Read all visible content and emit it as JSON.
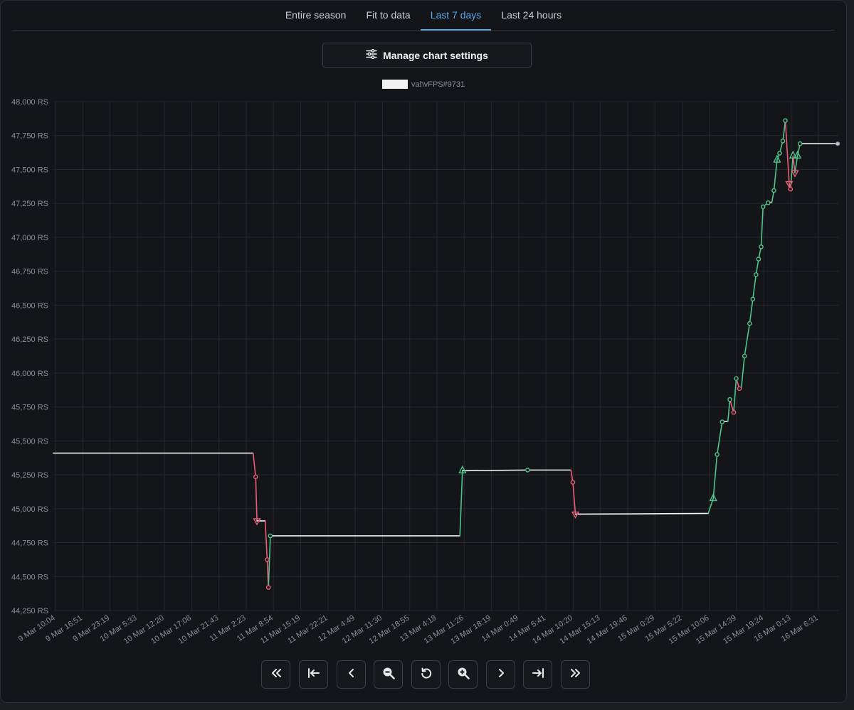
{
  "tabs": [
    {
      "label": "Entire season",
      "active": false
    },
    {
      "label": "Fit to data",
      "active": false
    },
    {
      "label": "Last 7 days",
      "active": true
    },
    {
      "label": "Last 24 hours",
      "active": false
    }
  ],
  "manage_button": {
    "label": "Manage chart settings",
    "icon": "sliders-icon"
  },
  "nav_buttons": [
    {
      "name": "jump-far-back-button",
      "icon": "double-chevron-left-icon"
    },
    {
      "name": "jump-to-start-button",
      "icon": "arrow-to-start-icon"
    },
    {
      "name": "step-back-button",
      "icon": "chevron-left-icon"
    },
    {
      "name": "zoom-out-button",
      "icon": "zoom-out-icon"
    },
    {
      "name": "reset-view-button",
      "icon": "reset-icon"
    },
    {
      "name": "zoom-in-button",
      "icon": "zoom-in-icon"
    },
    {
      "name": "step-forward-button",
      "icon": "chevron-right-icon"
    },
    {
      "name": "jump-to-end-button",
      "icon": "arrow-to-end-icon"
    },
    {
      "name": "jump-far-forward-button",
      "icon": "double-chevron-right-icon"
    }
  ],
  "colors": {
    "accent": "#5aa9e6",
    "rise": "#4fc48a",
    "fall": "#ee5d78",
    "flat": "#f2f2f2",
    "grid": "#25282e",
    "tick_text": "#8b8f96"
  },
  "chart_data": {
    "type": "line",
    "legend": {
      "series": "vahvFPS#9731",
      "color": "#f2f2f2",
      "placement": "top-center"
    },
    "y_unit_suffix": " RS",
    "ylim": [
      44250,
      48000
    ],
    "yticks": [
      "44,250 RS",
      "44,500 RS",
      "44,750 RS",
      "45,000 RS",
      "45,250 RS",
      "45,500 RS",
      "45,750 RS",
      "46,000 RS",
      "46,250 RS",
      "46,500 RS",
      "46,750 RS",
      "47,000 RS",
      "47,250 RS",
      "47,500 RS",
      "47,750 RS",
      "48,000 RS"
    ],
    "ytick_values": [
      44250,
      44500,
      44750,
      45000,
      45250,
      45500,
      45750,
      46000,
      46250,
      46500,
      46750,
      47000,
      47250,
      47500,
      47750,
      48000
    ],
    "xlim_hours": [
      0,
      164
    ],
    "xticks": [
      "9 Mar 10:04",
      "9 Mar 16:51",
      "9 Mar 23:19",
      "10 Mar 5:33",
      "10 Mar 12:20",
      "10 Mar 17:08",
      "10 Mar 21:43",
      "11 Mar 2:23",
      "11 Mar 8:54",
      "11 Mar 15:19",
      "11 Mar 22:21",
      "12 Mar 4:49",
      "12 Mar 11:30",
      "12 Mar 18:55",
      "13 Mar 4:18",
      "13 Mar 11:26",
      "13 Mar 18:19",
      "14 Mar 0:49",
      "14 Mar 5:41",
      "14 Mar 10:20",
      "14 Mar 15:13",
      "14 Mar 19:46",
      "15 Mar 0:29",
      "15 Mar 5:22",
      "15 Mar 10:06",
      "15 Mar 14:39",
      "15 Mar 19:24",
      "16 Mar 0:13",
      "16 Mar 6:31"
    ],
    "grid": true,
    "series": [
      {
        "name": "vahvFPS#9731",
        "points": [
          {
            "t": 0,
            "v": 45410,
            "m": "none"
          },
          {
            "t": 62.6,
            "v": 45410,
            "m": "none"
          },
          {
            "t": 63.4,
            "v": 45235,
            "m": "dot"
          },
          {
            "t": 63.8,
            "v": 44910,
            "m": "down"
          },
          {
            "t": 66.4,
            "v": 44910,
            "m": "none"
          },
          {
            "t": 67.0,
            "v": 44625,
            "m": "dot"
          },
          {
            "t": 67.4,
            "v": 44420,
            "m": "dot"
          },
          {
            "t": 68.0,
            "v": 44800,
            "m": "dot"
          },
          {
            "t": 127.4,
            "v": 44800,
            "m": "none"
          },
          {
            "t": 128.2,
            "v": 45280,
            "m": "up"
          },
          {
            "t": 148.6,
            "v": 45285,
            "m": "dot"
          },
          {
            "t": 162.2,
            "v": 45285,
            "m": "none"
          },
          {
            "t": 162.8,
            "v": 45195,
            "m": "dot"
          },
          {
            "t": 163.6,
            "v": 44960,
            "m": "down"
          },
          {
            "t": 205.2,
            "v": 44965,
            "m": "none"
          },
          {
            "t": 206.8,
            "v": 45075,
            "m": "up"
          },
          {
            "t": 208.0,
            "v": 45400,
            "m": "dot"
          },
          {
            "t": 209.6,
            "v": 45640,
            "m": "dot"
          },
          {
            "t": 211.4,
            "v": 45645,
            "m": "none"
          },
          {
            "t": 212.0,
            "v": 45805,
            "m": "dot"
          },
          {
            "t": 213.2,
            "v": 45710,
            "m": "dot"
          },
          {
            "t": 214.0,
            "v": 45960,
            "m": "dot"
          },
          {
            "t": 215.0,
            "v": 45885,
            "m": "dot"
          },
          {
            "t": 215.6,
            "v": 45890,
            "m": "none"
          },
          {
            "t": 216.6,
            "v": 46125,
            "m": "dot"
          },
          {
            "t": 218.2,
            "v": 46365,
            "m": "dot"
          },
          {
            "t": 219.2,
            "v": 46545,
            "m": "dot"
          },
          {
            "t": 220.2,
            "v": 46725,
            "m": "dot"
          },
          {
            "t": 221.0,
            "v": 46840,
            "m": "dot"
          },
          {
            "t": 221.8,
            "v": 46930,
            "m": "dot"
          },
          {
            "t": 222.4,
            "v": 47225,
            "m": "dot"
          },
          {
            "t": 224.0,
            "v": 47255,
            "m": "dot"
          },
          {
            "t": 225.2,
            "v": 47260,
            "m": "none"
          },
          {
            "t": 225.8,
            "v": 47345,
            "m": "dot"
          },
          {
            "t": 226.8,
            "v": 47570,
            "m": "up"
          },
          {
            "t": 227.6,
            "v": 47620,
            "m": "dot"
          },
          {
            "t": 228.6,
            "v": 47710,
            "m": "dot"
          },
          {
            "t": 229.4,
            "v": 47860,
            "m": "dot"
          },
          {
            "t": 230.6,
            "v": 47395,
            "m": "down"
          },
          {
            "t": 231.0,
            "v": 47355,
            "m": "dot"
          },
          {
            "t": 231.8,
            "v": 47600,
            "m": "up"
          },
          {
            "t": 232.4,
            "v": 47475,
            "m": "down"
          },
          {
            "t": 233.2,
            "v": 47600,
            "m": "up"
          },
          {
            "t": 234.0,
            "v": 47690,
            "m": "dot"
          },
          {
            "t": 245.8,
            "v": 47690,
            "m": "end"
          }
        ]
      }
    ]
  }
}
